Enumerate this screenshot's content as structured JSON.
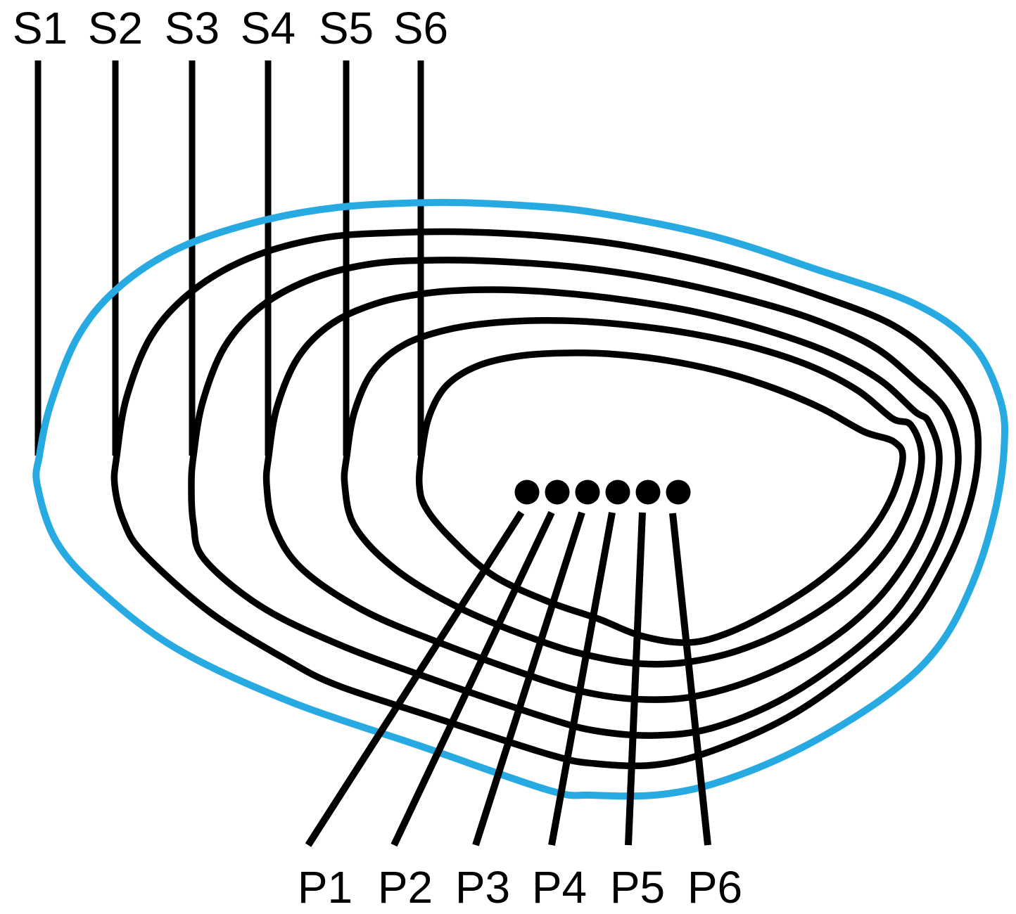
{
  "figure": {
    "surface_labels": [
      "S1",
      "S2",
      "S3",
      "S4",
      "S5",
      "S6"
    ],
    "point_labels": [
      "P1",
      "P2",
      "P3",
      "P4",
      "P5",
      "P6"
    ],
    "dot_count": 6,
    "colors": {
      "outer_curve": "#27AAE1",
      "inner_curves": "#000000",
      "lines": "#000000",
      "dots": "#000000",
      "text": "#000000",
      "background": "#FFFFFF"
    }
  }
}
